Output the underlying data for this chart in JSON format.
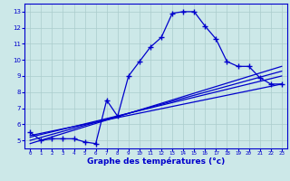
{
  "xlabel": "Graphe des températures (°c)",
  "hourly_temps": [
    5.5,
    5.0,
    5.1,
    5.1,
    5.1,
    4.9,
    4.8,
    7.5,
    6.5,
    9.0,
    9.9,
    10.8,
    11.4,
    12.9,
    13.0,
    13.0,
    12.1,
    11.3,
    9.9,
    9.6,
    9.6,
    8.9,
    8.5,
    8.5
  ],
  "line1_x": [
    0,
    23
  ],
  "line1_y": [
    5.3,
    8.5
  ],
  "line2_x": [
    0,
    23
  ],
  "line2_y": [
    5.2,
    9.0
  ],
  "line3_x": [
    0,
    23
  ],
  "line3_y": [
    5.0,
    9.3
  ],
  "line4_x": [
    0,
    23
  ],
  "line4_y": [
    4.8,
    9.6
  ],
  "main_color": "#0000cc",
  "bg_color": "#cce8e8",
  "grid_color": "#aacccc",
  "xlim": [
    -0.5,
    23.5
  ],
  "ylim": [
    4.5,
    13.5
  ],
  "yticks": [
    5,
    6,
    7,
    8,
    9,
    10,
    11,
    12,
    13
  ],
  "xticks": [
    0,
    1,
    2,
    3,
    4,
    5,
    6,
    7,
    8,
    9,
    10,
    11,
    12,
    13,
    14,
    15,
    16,
    17,
    18,
    19,
    20,
    21,
    22,
    23
  ]
}
